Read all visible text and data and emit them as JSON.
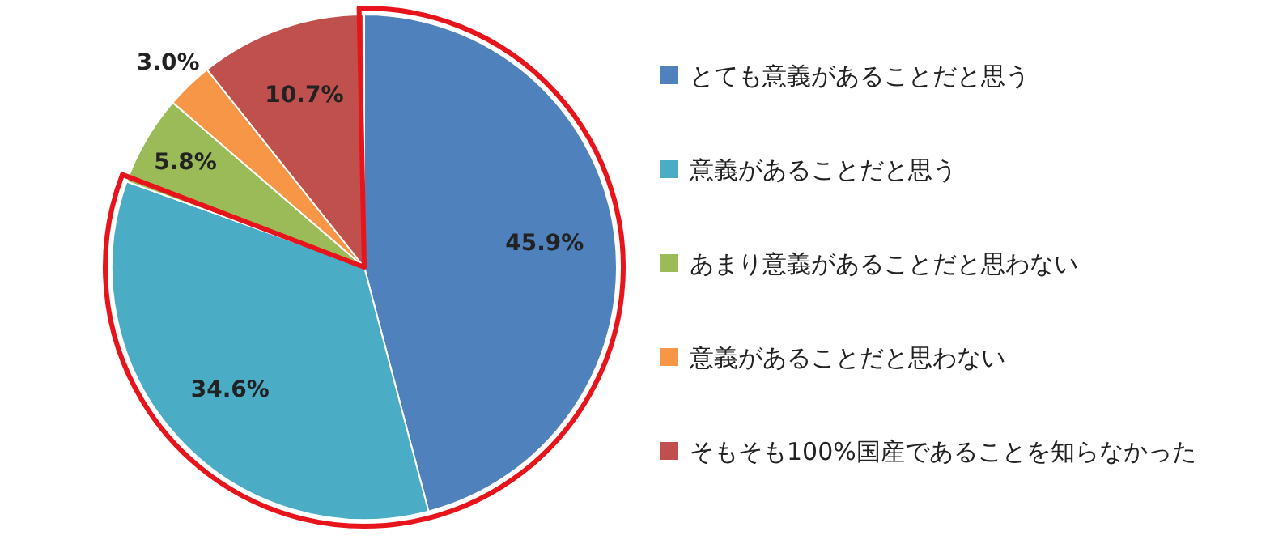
{
  "chart_data": {
    "type": "pie",
    "categories": [
      "とても意義があることだと思う",
      "意義があることだと思う",
      "あまり意義があることだと思わない",
      "意義があることだと思わない",
      "そもそも100%国産であることを知らなかった"
    ],
    "values": [
      45.9,
      34.6,
      5.8,
      3.0,
      10.7
    ],
    "value_labels": [
      "45.9%",
      "34.6%",
      "5.8%",
      "3.0%",
      "10.7%"
    ],
    "colors": [
      "#4f81bd",
      "#4bacc6",
      "#9bbb59",
      "#f79646",
      "#c0504d"
    ],
    "legend": "right"
  }
}
